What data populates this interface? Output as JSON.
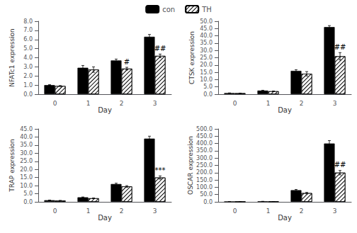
{
  "chart_data": [
    {
      "type": "bar",
      "xlabel": "Day",
      "ylabel": "NFATc1 expression",
      "categories": [
        "0",
        "1",
        "2",
        "3"
      ],
      "series": [
        {
          "name": "con",
          "color": "#000000",
          "values": [
            1.0,
            2.9,
            3.7,
            6.3
          ],
          "errors": [
            0.05,
            0.25,
            0.15,
            0.25
          ]
        },
        {
          "name": "TH",
          "color": "#ffffff",
          "values": [
            0.9,
            2.7,
            2.8,
            4.2
          ],
          "errors": [
            0.05,
            0.3,
            0.15,
            0.2
          ]
        }
      ],
      "ylim": [
        0,
        8.0
      ],
      "yticks": [
        {
          "value": 0.0,
          "label": "0.0"
        },
        {
          "value": 1.0,
          "label": "1.0"
        },
        {
          "value": 2.0,
          "label": "2.0"
        },
        {
          "value": 3.0,
          "label": "3.0"
        },
        {
          "value": 4.0,
          "label": "4.0"
        },
        {
          "value": 5.0,
          "label": "5.0"
        },
        {
          "value": 6.0,
          "label": "6.0"
        },
        {
          "value": 7.0,
          "label": "7.0"
        },
        {
          "value": 8.0,
          "label": "8.0"
        }
      ],
      "annotations": [
        {
          "text": "#",
          "x": "2",
          "series": "TH"
        },
        {
          "text": "##",
          "x": "3",
          "series": "TH"
        }
      ],
      "grid": false,
      "legend": "top"
    },
    {
      "type": "bar",
      "xlabel": "Day",
      "ylabel": "CTSK expression",
      "categories": [
        "0",
        "1",
        "2",
        "3"
      ],
      "series": [
        {
          "name": "con",
          "color": "#000000",
          "values": [
            0.8,
            2.5,
            16.0,
            46.0
          ],
          "errors": [
            0.05,
            0.2,
            0.8,
            1.0
          ]
        },
        {
          "name": "TH",
          "color": "#ffffff",
          "values": [
            0.7,
            2.0,
            14.0,
            26.0
          ],
          "errors": [
            0.05,
            0.2,
            1.5,
            2.5
          ]
        }
      ],
      "ylim": [
        0,
        50.0
      ],
      "yticks": [
        {
          "value": 0.0,
          "label": "0.0"
        },
        {
          "value": 5.0,
          "label": "5.0"
        },
        {
          "value": 10.0,
          "label": "10.0"
        },
        {
          "value": 15.0,
          "label": "15.0"
        },
        {
          "value": 20.0,
          "label": "20.0"
        },
        {
          "value": 25.0,
          "label": "25.0"
        },
        {
          "value": 30.0,
          "label": "30.0"
        },
        {
          "value": 35.0,
          "label": "35.0"
        },
        {
          "value": 40.0,
          "label": "40.0"
        },
        {
          "value": 45.0,
          "label": "45.0"
        },
        {
          "value": 50.0,
          "label": "50.0"
        }
      ],
      "annotations": [
        {
          "text": "##",
          "x": "3",
          "series": "TH"
        }
      ],
      "grid": false,
      "legend": "top"
    },
    {
      "type": "bar",
      "xlabel": "Day",
      "ylabel": "TRAP expression",
      "categories": [
        "0",
        "1",
        "2",
        "3"
      ],
      "series": [
        {
          "name": "con",
          "color": "#000000",
          "values": [
            1.0,
            2.8,
            11.0,
            39.0
          ],
          "errors": [
            0.05,
            0.2,
            0.5,
            1.5
          ]
        },
        {
          "name": "TH",
          "color": "#ffffff",
          "values": [
            0.8,
            2.2,
            9.5,
            15.0
          ],
          "errors": [
            0.05,
            0.2,
            0.5,
            1.0
          ]
        }
      ],
      "ylim": [
        0,
        45.0
      ],
      "yticks": [
        {
          "value": 0.0,
          "label": "0.0"
        },
        {
          "value": 5.0,
          "label": "5.0"
        },
        {
          "value": 10.0,
          "label": "10.0"
        },
        {
          "value": 15.0,
          "label": "15.0"
        },
        {
          "value": 20.0,
          "label": "20.0"
        },
        {
          "value": 25.0,
          "label": "25.0"
        },
        {
          "value": 30.0,
          "label": "30.0"
        },
        {
          "value": 35.0,
          "label": "35.0"
        },
        {
          "value": 40.0,
          "label": "40.0"
        },
        {
          "value": 45.0,
          "label": "45.0"
        }
      ],
      "annotations": [
        {
          "text": "***",
          "x": "3",
          "series": "TH"
        }
      ],
      "grid": false,
      "legend": "top"
    },
    {
      "type": "bar",
      "xlabel": "Day",
      "ylabel": "OSCAR expression",
      "categories": [
        "0",
        "1",
        "2",
        "3"
      ],
      "series": [
        {
          "name": "con",
          "color": "#000000",
          "values": [
            1.0,
            3.0,
            80.0,
            400.0
          ],
          "errors": [
            0.1,
            0.3,
            5.0,
            20.0
          ]
        },
        {
          "name": "TH",
          "color": "#ffffff",
          "values": [
            0.8,
            2.0,
            60.0,
            200.0
          ],
          "errors": [
            0.1,
            0.3,
            5.0,
            15.0
          ]
        }
      ],
      "ylim": [
        0,
        500.0
      ],
      "yticks": [
        {
          "value": 0.0,
          "label": "0.0"
        },
        {
          "value": 50.0,
          "label": "50.0"
        },
        {
          "value": 100.0,
          "label": "100.0"
        },
        {
          "value": 150.0,
          "label": "150.0"
        },
        {
          "value": 200.0,
          "label": "200.0"
        },
        {
          "value": 250.0,
          "label": "250.0"
        },
        {
          "value": 300.0,
          "label": "300.0"
        },
        {
          "value": 350.0,
          "label": "350.0"
        },
        {
          "value": 400.0,
          "label": "400.0"
        },
        {
          "value": 450.0,
          "label": "450.0"
        },
        {
          "value": 500.0,
          "label": "500.0"
        }
      ],
      "annotations": [
        {
          "text": "##",
          "x": "3",
          "series": "TH"
        }
      ],
      "grid": false,
      "legend": "top"
    }
  ]
}
